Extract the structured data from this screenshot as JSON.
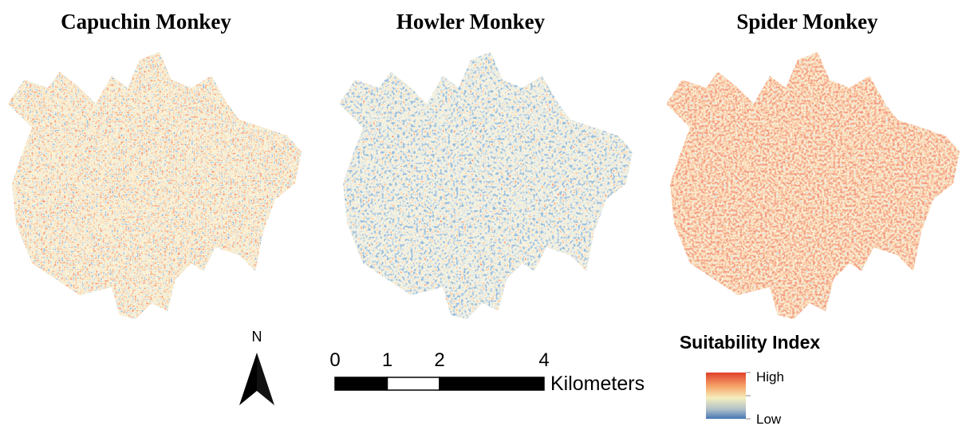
{
  "panels": [
    {
      "title": "Capuchin Monkey"
    },
    {
      "title": "Howler Monkey"
    },
    {
      "title": "Spider Monkey"
    }
  ],
  "north_arrow": {
    "label": "N"
  },
  "scale_bar": {
    "ticks": [
      0,
      1,
      2,
      4
    ],
    "unit": "Kilometers"
  },
  "legend": {
    "title": "Suitability Index",
    "high": "High",
    "low": "Low"
  }
}
